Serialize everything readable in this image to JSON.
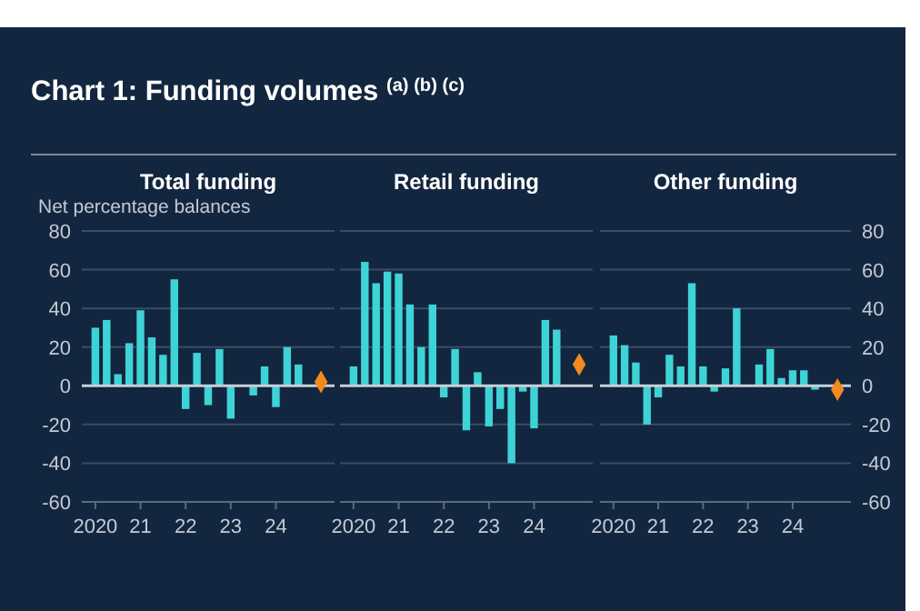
{
  "chart_data": [
    {
      "type": "bar",
      "title": "Chart 1: Funding volumes $^{(a) (b) (c)}$",
      "subtitle": "Total funding",
      "ylabel": "Net percentage balances",
      "x": [
        2020,
        2020.25,
        2020.5,
        2020.75,
        2021,
        2021.25,
        2021.5,
        2021.75,
        2022,
        2022.25,
        2022.5,
        2022.75,
        2023,
        2023.25,
        2023.5,
        2023.75,
        2024,
        2024.25,
        2024.5,
        2025
      ],
      "series": [
        {
          "color": "#3ed3d6",
          "values": [
            30,
            34,
            6,
            22,
            39,
            25,
            16,
            55,
            -12,
            17,
            -10,
            19,
            -17,
            0,
            -5,
            10,
            -11,
            20,
            11,
            null
          ]
        },
        {
          "type": "scatter",
          "color": "#f28a1e",
          "values": [
            null,
            null,
            null,
            null,
            null,
            null,
            null,
            null,
            null,
            null,
            null,
            null,
            null,
            null,
            null,
            null,
            null,
            null,
            null,
            2
          ]
        }
      ],
      "marker": "diamond",
      "xlim": [
        2019.7,
        2025.3
      ],
      "xticks": [
        {
          "value": 2020,
          "label": "2020"
        },
        {
          "value": 2021,
          "label": "21"
        },
        {
          "value": 2022,
          "label": "22"
        },
        {
          "value": 2023,
          "label": "23"
        },
        {
          "value": 2024,
          "label": "24"
        }
      ],
      "ylim": [
        -60,
        80
      ],
      "yticks": [
        -60,
        -40,
        -20,
        0,
        20,
        40,
        60,
        80
      ],
      "grid": "y"
    },
    {
      "type": "bar",
      "subtitle": "Retail funding",
      "x": [
        2020,
        2020.25,
        2020.5,
        2020.75,
        2021,
        2021.25,
        2021.5,
        2021.75,
        2022,
        2022.25,
        2022.5,
        2022.75,
        2023,
        2023.25,
        2023.5,
        2023.75,
        2024,
        2024.25,
        2024.5,
        2025
      ],
      "series": [
        {
          "color": "#3ed3d6",
          "values": [
            10,
            64,
            53,
            59,
            58,
            42,
            20,
            42,
            -6,
            19,
            -23,
            7,
            -21,
            -12,
            -40,
            -3,
            -22,
            34,
            29,
            null
          ]
        },
        {
          "type": "scatter",
          "color": "#f28a1e",
          "values": [
            null,
            null,
            null,
            null,
            null,
            null,
            null,
            null,
            null,
            null,
            null,
            null,
            null,
            null,
            null,
            null,
            null,
            null,
            null,
            11
          ]
        }
      ],
      "marker": "diamond",
      "xlim": [
        2019.7,
        2025.3
      ],
      "xticks": [
        {
          "value": 2020,
          "label": "2020"
        },
        {
          "value": 2021,
          "label": "21"
        },
        {
          "value": 2022,
          "label": "22"
        },
        {
          "value": 2023,
          "label": "23"
        },
        {
          "value": 2024,
          "label": "24"
        }
      ],
      "ylim": [
        -60,
        80
      ],
      "yticks": [
        -60,
        -40,
        -20,
        0,
        20,
        40,
        60,
        80
      ],
      "grid": "y",
      "tick_labels": "x"
    },
    {
      "type": "bar",
      "subtitle": "Other funding",
      "x": [
        2020,
        2020.25,
        2020.5,
        2020.75,
        2021,
        2021.25,
        2021.5,
        2021.75,
        2022,
        2022.25,
        2022.5,
        2022.75,
        2023,
        2023.25,
        2023.5,
        2023.75,
        2024,
        2024.25,
        2024.5,
        2025
      ],
      "series": [
        {
          "color": "#3ed3d6",
          "values": [
            26,
            21,
            12,
            -20,
            -6,
            16,
            10,
            53,
            10,
            -3,
            9,
            40,
            0,
            11,
            19,
            4,
            8,
            8,
            -2,
            null
          ]
        },
        {
          "type": "scatter",
          "color": "#f28a1e",
          "values": [
            null,
            null,
            null,
            null,
            null,
            null,
            null,
            null,
            null,
            null,
            null,
            null,
            null,
            null,
            null,
            null,
            null,
            null,
            null,
            -2
          ]
        }
      ],
      "marker": "diamond",
      "xlim": [
        2019.7,
        2025.3
      ],
      "xticks": [
        {
          "value": 2020,
          "label": "2020"
        },
        {
          "value": 2021,
          "label": "21"
        },
        {
          "value": 2022,
          "label": "22"
        },
        {
          "value": 2023,
          "label": "23"
        },
        {
          "value": 2024,
          "label": "24"
        }
      ],
      "ylim": [
        -60,
        80
      ],
      "yticks": [
        -60,
        -40,
        -20,
        0,
        20,
        40,
        60,
        80
      ],
      "grid": "y"
    }
  ]
}
